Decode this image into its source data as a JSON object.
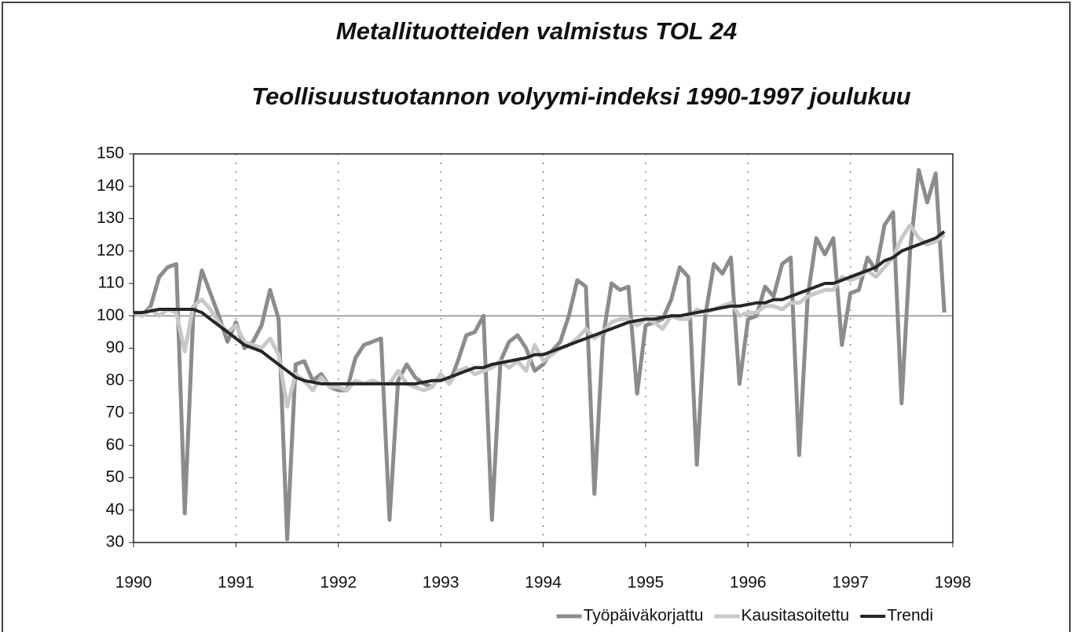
{
  "chart_data": {
    "type": "line",
    "title": "Metallituotteiden valmistus TOL 24",
    "subtitle": "Teollisuustuotannon volyymi-indeksi 1990-1997 joulukuu",
    "x": [
      1990,
      1990.083,
      1990.167,
      1990.25,
      1990.333,
      1990.417,
      1990.5,
      1990.583,
      1990.667,
      1990.75,
      1990.833,
      1990.917,
      1991,
      1991.083,
      1991.167,
      1991.25,
      1991.333,
      1991.417,
      1991.5,
      1991.583,
      1991.667,
      1991.75,
      1991.833,
      1991.917,
      1992,
      1992.083,
      1992.167,
      1992.25,
      1992.333,
      1992.417,
      1992.5,
      1992.583,
      1992.667,
      1992.75,
      1992.833,
      1992.917,
      1993,
      1993.083,
      1993.167,
      1993.25,
      1993.333,
      1993.417,
      1993.5,
      1993.583,
      1993.667,
      1993.75,
      1993.833,
      1993.917,
      1994,
      1994.083,
      1994.167,
      1994.25,
      1994.333,
      1994.417,
      1994.5,
      1994.583,
      1994.667,
      1994.75,
      1994.833,
      1994.917,
      1995,
      1995.083,
      1995.167,
      1995.25,
      1995.333,
      1995.417,
      1995.5,
      1995.583,
      1995.667,
      1995.75,
      1995.833,
      1995.917,
      1996,
      1996.083,
      1996.167,
      1996.25,
      1996.333,
      1996.417,
      1996.5,
      1996.583,
      1996.667,
      1996.75,
      1996.833,
      1996.917,
      1997,
      1997.083,
      1997.167,
      1997.25,
      1997.333,
      1997.417,
      1997.5,
      1997.583,
      1997.667,
      1997.75,
      1997.833,
      1997.917
    ],
    "series": [
      {
        "name": "Työpäiväkorjattu",
        "color": "#8c8c8c",
        "width": 5,
        "values": [
          101,
          100,
          103,
          112,
          115,
          116,
          39,
          100,
          114,
          107,
          100,
          92,
          98,
          90,
          92,
          97,
          108,
          99,
          31,
          85,
          86,
          80,
          82,
          78,
          77,
          77,
          87,
          91,
          92,
          93,
          37,
          80,
          85,
          81,
          79,
          78,
          82,
          79,
          86,
          94,
          95,
          100,
          37,
          86,
          92,
          94,
          90,
          83,
          85,
          89,
          92,
          100,
          111,
          109,
          45,
          93,
          110,
          108,
          109,
          76,
          97,
          98,
          99,
          105,
          115,
          112,
          54,
          100,
          116,
          113,
          118,
          79,
          99,
          100,
          109,
          106,
          116,
          118,
          57,
          106,
          124,
          119,
          124,
          91,
          107,
          108,
          118,
          114,
          128,
          132,
          73,
          120,
          145,
          135,
          144,
          101
        ]
      },
      {
        "name": "Kausitasoitettu",
        "color": "#c8c8c8",
        "width": 5,
        "values": [
          101,
          100,
          102,
          100,
          102,
          101,
          89,
          103,
          105,
          102,
          98,
          95,
          97,
          92,
          91,
          90,
          93,
          88,
          72,
          82,
          80,
          77,
          81,
          78,
          78,
          77,
          80,
          79,
          80,
          79,
          79,
          83,
          79,
          78,
          77,
          78,
          82,
          79,
          83,
          84,
          82,
          83,
          84,
          86,
          84,
          86,
          83,
          91,
          86,
          88,
          90,
          91,
          93,
          96,
          93,
          95,
          98,
          99,
          99,
          97,
          99,
          98,
          96,
          100,
          99,
          99,
          102,
          101,
          102,
          103,
          104,
          100,
          101,
          101,
          103,
          103,
          102,
          104,
          104,
          106,
          107,
          108,
          108,
          112,
          111,
          112,
          114,
          112,
          115,
          118,
          124,
          128,
          124,
          122,
          123,
          125
        ]
      },
      {
        "name": "Trendi",
        "color": "#262626",
        "width": 4,
        "values": [
          101,
          101,
          101.5,
          102,
          102,
          102,
          102,
          102,
          101,
          99,
          97,
          95,
          93,
          91,
          90,
          89,
          87,
          85,
          83,
          81,
          80,
          79.5,
          79,
          79,
          79,
          79,
          79,
          79,
          79,
          79,
          79,
          79,
          79,
          79,
          79.5,
          80,
          80,
          81,
          82,
          83,
          84,
          84,
          85,
          85.5,
          86,
          86.5,
          87,
          88,
          88,
          89,
          90,
          91,
          92,
          93,
          94,
          95,
          96,
          97,
          98,
          98.5,
          99,
          99,
          99.5,
          100,
          100,
          100.5,
          101,
          101.5,
          102,
          102.5,
          103,
          103,
          103.5,
          104,
          104,
          105,
          105,
          106,
          107,
          108,
          109,
          110,
          110,
          111,
          112,
          113,
          114,
          115,
          117,
          118,
          120,
          121,
          122,
          123,
          124,
          126
        ]
      }
    ],
    "xlim": [
      1990,
      1998
    ],
    "xticks": [
      1990,
      1991,
      1992,
      1993,
      1994,
      1995,
      1996,
      1997,
      1998
    ],
    "ylim": [
      30,
      150
    ],
    "yticks": [
      30,
      40,
      50,
      60,
      70,
      80,
      90,
      100,
      110,
      120,
      130,
      140,
      150
    ],
    "reference_line": 100,
    "grid": true,
    "legend": "bottom-right"
  }
}
